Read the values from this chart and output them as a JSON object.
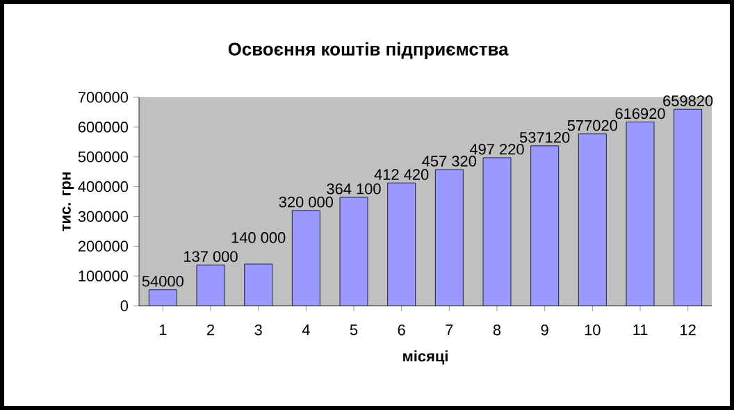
{
  "chart_data": {
    "type": "bar",
    "title": "Освоєння коштів підприємства",
    "xlabel": "місяці",
    "ylabel": "тис. грн",
    "categories": [
      "1",
      "2",
      "3",
      "4",
      "5",
      "6",
      "7",
      "8",
      "9",
      "10",
      "11",
      "12"
    ],
    "values": [
      54000,
      137000,
      140000,
      320000,
      364100,
      412420,
      457320,
      497220,
      537120,
      577020,
      616920,
      659820
    ],
    "value_labels": [
      "54000",
      "137 000",
      "140 000",
      "320 000",
      "364 100",
      "412 420",
      "457 320",
      "497 220",
      "537120",
      "577020",
      "616920",
      "659820"
    ],
    "color": "#9999ff",
    "ylim": [
      0,
      700000
    ],
    "yticks": [
      0,
      100000,
      200000,
      300000,
      400000,
      500000,
      600000,
      700000
    ],
    "grid": false
  }
}
